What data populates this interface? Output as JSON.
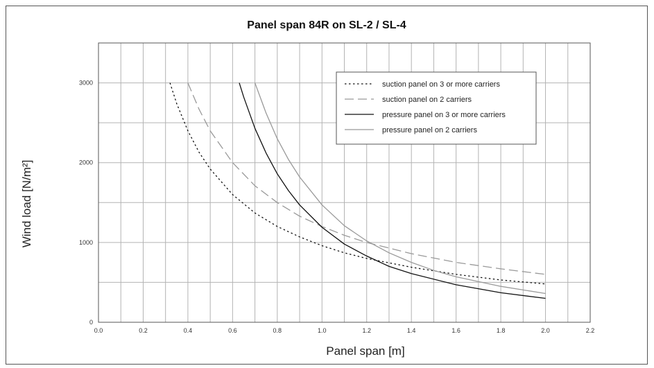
{
  "chart_data": {
    "type": "line",
    "title": "Panel span 84R on SL-2 / SL-4",
    "xlabel": "Panel span [m]",
    "ylabel": "Wind load [N/m²]",
    "xlim": [
      0.0,
      2.2
    ],
    "ylim": [
      0,
      3500
    ],
    "x_ticks": [
      "0.0",
      "0.2",
      "0.4",
      "0.6",
      "0.8",
      "1.0",
      "1.2",
      "1.4",
      "1.6",
      "1.8",
      "2.0",
      "2.2"
    ],
    "y_ticks": [
      "0",
      "1000",
      "2000",
      "3000"
    ],
    "grid": true,
    "legend_position": "top-right",
    "series": [
      {
        "name": "suction panel on 3 or more carriers",
        "color": "#111111",
        "style": "dotted",
        "x": [
          0.32,
          0.35,
          0.4,
          0.45,
          0.5,
          0.6,
          0.7,
          0.8,
          0.9,
          1.0,
          1.1,
          1.2,
          1.4,
          1.6,
          1.8,
          2.0
        ],
        "y": [
          3000,
          2740,
          2400,
          2130,
          1920,
          1600,
          1370,
          1200,
          1070,
          960,
          870,
          800,
          690,
          600,
          530,
          480
        ]
      },
      {
        "name": "suction panel on 2 carriers",
        "color": "#999999",
        "style": "dashed",
        "x": [
          0.4,
          0.45,
          0.5,
          0.6,
          0.7,
          0.8,
          0.9,
          1.0,
          1.1,
          1.2,
          1.4,
          1.6,
          1.8,
          2.0
        ],
        "y": [
          3000,
          2670,
          2400,
          2000,
          1710,
          1500,
          1330,
          1200,
          1090,
          1000,
          860,
          750,
          670,
          600
        ]
      },
      {
        "name": "pressure panel on 3 or more carriers",
        "color": "#111111",
        "style": "solid",
        "x": [
          0.63,
          0.65,
          0.7,
          0.75,
          0.8,
          0.85,
          0.9,
          1.0,
          1.1,
          1.2,
          1.3,
          1.4,
          1.6,
          1.8,
          2.0
        ],
        "y": [
          3000,
          2820,
          2430,
          2120,
          1860,
          1650,
          1470,
          1190,
          980,
          830,
          700,
          610,
          470,
          370,
          300
        ]
      },
      {
        "name": "pressure panel on 2 carriers",
        "color": "#999999",
        "style": "solid",
        "x": [
          0.7,
          0.75,
          0.8,
          0.85,
          0.9,
          1.0,
          1.1,
          1.2,
          1.3,
          1.4,
          1.5,
          1.6,
          1.8,
          2.0
        ],
        "y": [
          3000,
          2620,
          2300,
          2040,
          1820,
          1470,
          1210,
          1020,
          870,
          750,
          650,
          570,
          450,
          360
        ]
      }
    ]
  }
}
